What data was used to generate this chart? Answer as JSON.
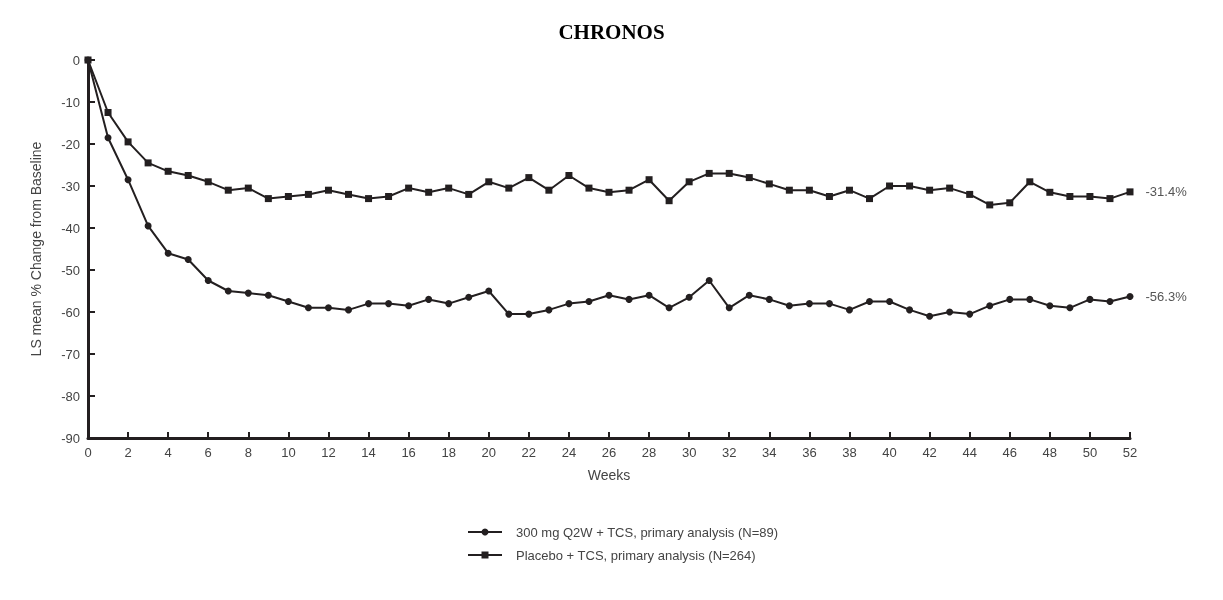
{
  "chart_data": {
    "type": "line",
    "title": "CHRONOS",
    "xlabel": "Weeks",
    "ylabel": "LS mean % Change from Baseline",
    "x": [
      0,
      1,
      2,
      3,
      4,
      5,
      6,
      7,
      8,
      9,
      10,
      11,
      12,
      13,
      14,
      15,
      16,
      17,
      18,
      19,
      20,
      21,
      22,
      23,
      24,
      25,
      26,
      27,
      28,
      29,
      30,
      31,
      32,
      33,
      34,
      35,
      36,
      37,
      38,
      39,
      40,
      41,
      42,
      43,
      44,
      45,
      46,
      47,
      48,
      49,
      50,
      51,
      52
    ],
    "xlim": [
      0,
      52
    ],
    "xticks": [
      0,
      2,
      4,
      6,
      8,
      10,
      12,
      14,
      16,
      18,
      20,
      22,
      24,
      26,
      28,
      30,
      32,
      34,
      36,
      38,
      40,
      42,
      44,
      46,
      48,
      50,
      52
    ],
    "ylim": [
      -90,
      0
    ],
    "yticks": [
      -90,
      -80,
      -70,
      -60,
      -50,
      -40,
      -30,
      -20,
      -10,
      0
    ],
    "grid": false,
    "legend": "bottom",
    "line_style": "solid",
    "series": [
      {
        "name": "300 mg Q2W + TCS, primary analysis (N=89)",
        "color": "#231f20",
        "marker": "circle",
        "values": [
          0,
          -18.5,
          -28.5,
          -39.5,
          -46,
          -47.5,
          -52.5,
          -55,
          -55.5,
          -56,
          -57.5,
          -59,
          -59,
          -59.5,
          -58,
          -58,
          -58.5,
          -57,
          -58,
          -56.5,
          -55,
          -60.5,
          -60.5,
          -59.5,
          -58,
          -57.5,
          -56,
          -57,
          -56,
          -59,
          -56.5,
          -52.5,
          -59,
          -56,
          -57,
          -58.5,
          -58,
          -58,
          -59.5,
          -57.5,
          -57.5,
          -59.5,
          -61,
          -60,
          -60.5,
          -58.5,
          -57,
          -57,
          -58.5,
          -59,
          -57,
          -57.5,
          -56.3
        ],
        "value_labels": [
          null,
          null,
          null,
          null,
          null,
          null,
          null,
          null,
          null,
          null,
          null,
          null,
          null,
          null,
          null,
          null,
          null,
          null,
          null,
          null,
          null,
          null,
          null,
          null,
          null,
          null,
          null,
          null,
          null,
          null,
          null,
          null,
          null,
          null,
          null,
          null,
          null,
          null,
          null,
          null,
          null,
          null,
          null,
          null,
          null,
          null,
          null,
          null,
          null,
          null,
          null,
          null,
          "-56.3%"
        ]
      },
      {
        "name": "Placebo + TCS, primary analysis (N=264)",
        "color": "#231f20",
        "marker": "square",
        "values": [
          0,
          -12.5,
          -19.5,
          -24.5,
          -26.5,
          -27.5,
          -29,
          -31,
          -30.5,
          -33,
          -32.5,
          -32,
          -31,
          -32,
          -33,
          -32.5,
          -30.5,
          -31.5,
          -30.5,
          -32,
          -29,
          -30.5,
          -28,
          -31,
          -27.5,
          -30.5,
          -31.5,
          -31,
          -28.5,
          -33.5,
          -29,
          -27,
          -27,
          -28,
          -29.5,
          -31,
          -31,
          -32.5,
          -31,
          -33,
          -30,
          -30,
          -31,
          -30.5,
          -32,
          -34.5,
          -34,
          -29,
          -31.5,
          -32.5,
          -32.5,
          -33,
          -31.4
        ],
        "value_labels": [
          null,
          null,
          null,
          null,
          null,
          null,
          null,
          null,
          null,
          null,
          null,
          null,
          null,
          null,
          null,
          null,
          null,
          null,
          null,
          null,
          null,
          null,
          null,
          null,
          null,
          null,
          null,
          null,
          null,
          null,
          null,
          null,
          null,
          null,
          null,
          null,
          null,
          null,
          null,
          null,
          null,
          null,
          null,
          null,
          null,
          null,
          null,
          null,
          null,
          null,
          null,
          null,
          "-31.4%"
        ]
      }
    ]
  }
}
